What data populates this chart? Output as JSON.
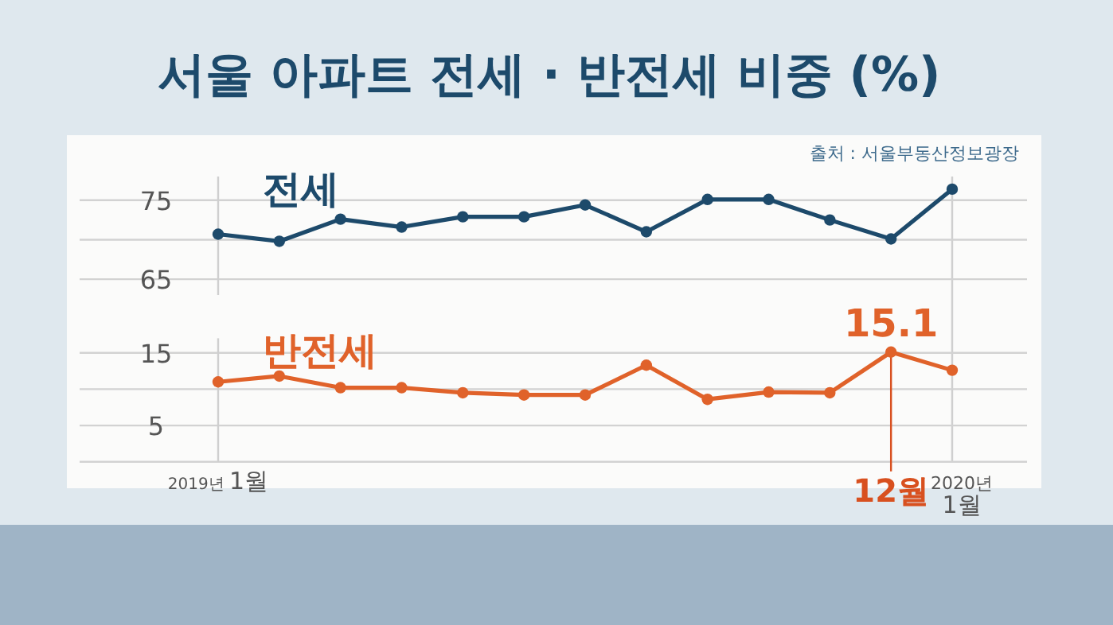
{
  "chart_data": [
    {
      "type": "line",
      "title": "서울 아파트 전세 · 반전세 비중 (%)",
      "annotations": [
        "출처 : 서울부동산정보광장"
      ],
      "categories": [
        null,
        null,
        null,
        null,
        null,
        null,
        null,
        null,
        null,
        null,
        null,
        null,
        null
      ],
      "series": [
        {
          "name": "전세",
          "color": "#1d4a6b",
          "values": [
            70.7,
            69.8,
            72.6,
            71.6,
            72.9,
            72.9,
            74.4,
            71.0,
            75.1,
            75.1,
            72.5,
            70.1,
            76.4
          ]
        }
      ],
      "ylim": [
        63,
        78
      ],
      "yticks": [
        65,
        {
          "value": 70,
          "label": null
        },
        75
      ],
      "grid": "y",
      "marker": "circle"
    },
    {
      "type": "line",
      "categories": [
        "2019년 1월",
        null,
        null,
        null,
        null,
        null,
        null,
        null,
        null,
        null,
        null,
        "12월",
        "2020년 1월"
      ],
      "series": [
        {
          "name": "반전세",
          "color": "#e0622a",
          "values": [
            11.0,
            11.8,
            10.2,
            10.2,
            9.5,
            9.2,
            9.2,
            13.3,
            8.6,
            9.6,
            9.5,
            15.1,
            12.6
          ],
          "value_labels": [
            null,
            null,
            null,
            null,
            null,
            null,
            null,
            null,
            null,
            null,
            null,
            "15.1",
            null
          ]
        }
      ],
      "ylim": [
        0,
        17
      ],
      "yticks": [
        {
          "value": 0,
          "label": null
        },
        5,
        {
          "value": 10,
          "label": null
        },
        15
      ],
      "grid": "y",
      "marker": "circle"
    }
  ]
}
